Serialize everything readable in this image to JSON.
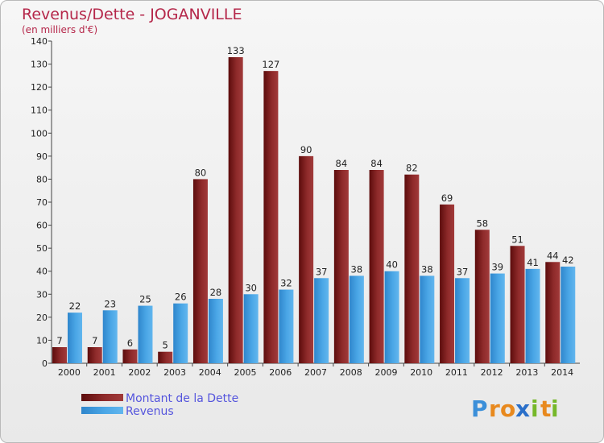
{
  "chart_data": {
    "type": "bar",
    "title": "Revenus/Dette - JOGANVILLE",
    "subtitle": "(en milliers d'€)",
    "categories": [
      "2000",
      "2001",
      "2002",
      "2003",
      "2004",
      "2005",
      "2006",
      "2007",
      "2008",
      "2009",
      "2010",
      "2011",
      "2012",
      "2013",
      "2014"
    ],
    "series": [
      {
        "name": "Montant de la Dette",
        "color": "#8b1a1a",
        "values": [
          7,
          7,
          6,
          5,
          80,
          133,
          127,
          90,
          84,
          84,
          82,
          69,
          58,
          51,
          44
        ]
      },
      {
        "name": "Revenus",
        "color": "#3d9be0",
        "values": [
          22,
          23,
          25,
          26,
          28,
          30,
          32,
          37,
          38,
          40,
          38,
          37,
          39,
          41,
          42
        ]
      }
    ],
    "ylim": [
      0,
      140
    ],
    "yticks": [
      0,
      10,
      20,
      30,
      40,
      50,
      60,
      70,
      80,
      90,
      100,
      110,
      120,
      130,
      140
    ],
    "grid": false,
    "legend_position": "bottom-left"
  },
  "logo": {
    "letters": [
      "P",
      "r",
      "o",
      "x",
      "i",
      "t",
      "i"
    ],
    "colors": [
      "#3b8fd9",
      "#e8891e",
      "#e8891e",
      "#2a6fc9",
      "#76b82a",
      "#e8891e",
      "#76b82a"
    ]
  }
}
